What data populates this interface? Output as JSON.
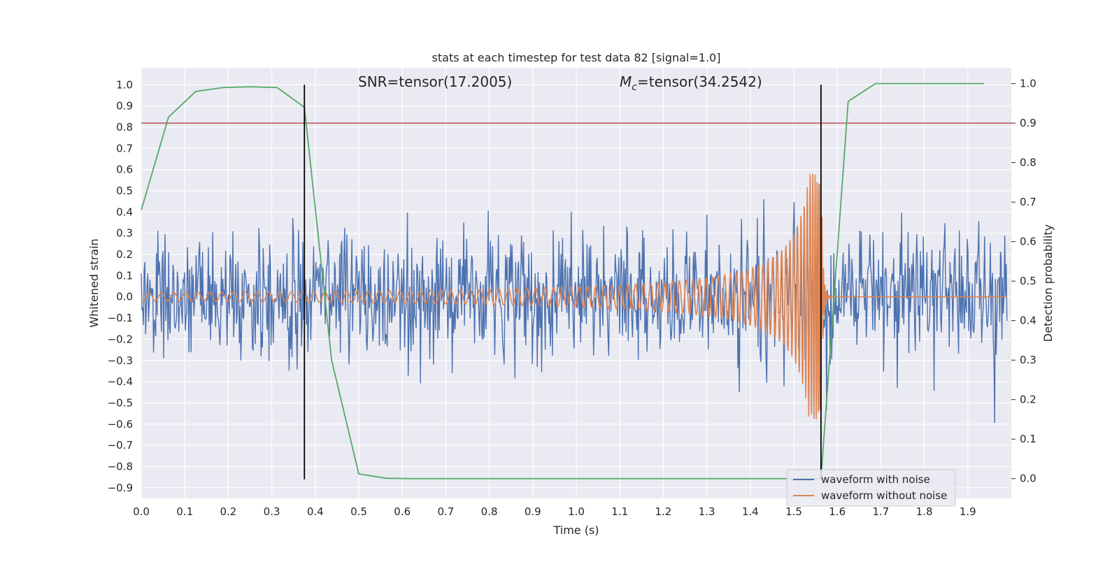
{
  "chart_data": {
    "type": "line",
    "title": "stats at each timestep for test data 82 [signal=1.0]",
    "xlabel": "Time (s)",
    "ylabel": "Whitened strain",
    "y2label": "Detection probability",
    "xlim": [
      0.0,
      2.0
    ],
    "ylim": [
      -0.95,
      1.08
    ],
    "y2lim": [
      -0.05,
      1.04
    ],
    "xticks": [
      "0.0",
      "0.1",
      "0.2",
      "0.3",
      "0.4",
      "0.5",
      "0.6",
      "0.7",
      "0.8",
      "0.9",
      "1.0",
      "1.1",
      "1.2",
      "1.3",
      "1.4",
      "1.5",
      "1.6",
      "1.7",
      "1.8",
      "1.9"
    ],
    "yticks": [
      "1.0",
      "0.9",
      "0.8",
      "0.7",
      "0.6",
      "0.5",
      "0.4",
      "0.3",
      "0.2",
      "0.1",
      "0.0",
      "−0.1",
      "−0.2",
      "−0.3",
      "−0.4",
      "−0.5",
      "−0.6",
      "−0.7",
      "−0.8",
      "−0.9"
    ],
    "y2ticks": [
      "1.0",
      "0.9",
      "0.8",
      "0.7",
      "0.6",
      "0.5",
      "0.4",
      "0.3",
      "0.2",
      "0.1",
      "0.0"
    ],
    "grid": true,
    "legend_position": "lower-right",
    "annotations": {
      "snr_text": "SNR=tensor(17.2005)",
      "mc_prefix": "M",
      "mc_subscript": "c",
      "mc_value": "=tensor(34.2542)"
    },
    "series": [
      {
        "name": "waveform with noise",
        "color": "#4c72b0",
        "axis": "left",
        "noise_amplitude": 0.22,
        "sample_count": 1200
      },
      {
        "name": "waveform without noise",
        "color": "#dd8452",
        "axis": "left",
        "merger_time": 1.565,
        "ringdown_end": 1.585,
        "peak_amplitude": 0.58,
        "early_amplitude": 0.02
      },
      {
        "color": "#55a868",
        "axis": "right",
        "x": [
          0.0,
          0.0625,
          0.125,
          0.1875,
          0.25,
          0.3125,
          0.375,
          0.4375,
          0.5,
          0.5625,
          0.625,
          1.5,
          1.5625,
          1.625,
          1.6875,
          1.75,
          1.8125,
          1.875,
          1.9375
        ],
        "values": [
          0.68,
          0.915,
          0.98,
          0.99,
          0.992,
          0.99,
          0.94,
          0.3,
          0.012,
          0.001,
          0.0,
          0.0,
          0.0,
          0.955,
          1.0,
          1.0,
          1.0,
          1.0,
          1.0
        ]
      },
      {
        "color": "#c44e52",
        "axis": "right",
        "type": "hline",
        "value": 0.9
      }
    ],
    "vlines": [
      {
        "x": 0.375,
        "ymin": -0.86,
        "ymax": 1.0,
        "color": "#000000"
      },
      {
        "x": 1.5625,
        "ymin": -0.86,
        "ymax": 1.0,
        "color": "#000000"
      }
    ]
  }
}
